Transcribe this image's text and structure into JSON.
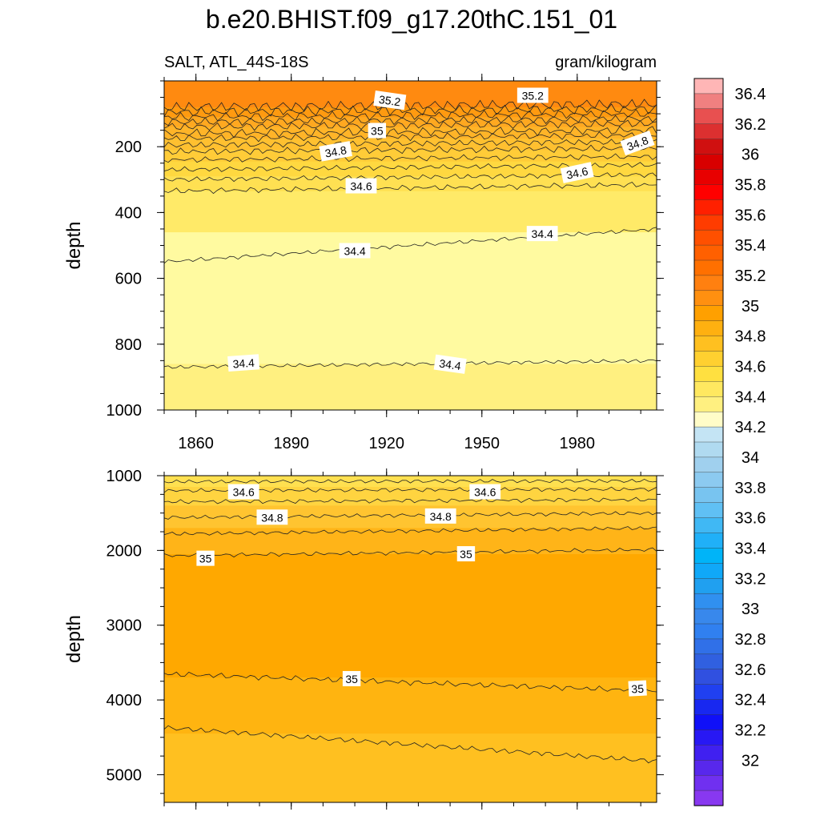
{
  "chart_data": {
    "type": "contour",
    "title": "b.e20.BHIST.f09_g17.20thC.151_01",
    "variable": "SALT, ATL_44S-18S",
    "units": "gram/kilogram",
    "ylabel": "depth",
    "xlim": [
      1850,
      2005
    ],
    "x_ticks": [
      1860,
      1890,
      1920,
      1950,
      1980
    ],
    "x_tick_labels": [
      "1860",
      "1890",
      "1920",
      "1950",
      "1980"
    ],
    "colors": {
      "upper_warm_band": "#ff8a10",
      "deep_band": "#ffa800"
    },
    "panels": [
      {
        "name": "upper",
        "ylim": [
          0,
          1000
        ],
        "y_ticks": [
          200,
          400,
          600,
          800,
          1000
        ],
        "y_tick_labels": [
          "200",
          "400",
          "600",
          "800",
          "1000"
        ],
        "fills": [
          {
            "top": 0,
            "color": "#ff8a10"
          },
          {
            "top": 80,
            "color": "#ff9a10"
          },
          {
            "top": 110,
            "color": "#ffa820"
          },
          {
            "top": 140,
            "color": "#ffb428"
          },
          {
            "top": 175,
            "color": "#ffc030"
          },
          {
            "top": 210,
            "color": "#ffcc38"
          },
          {
            "top": 245,
            "color": "#ffd840"
          },
          {
            "top": 290,
            "color": "#ffe052"
          },
          {
            "top": 335,
            "color": "#ffea68"
          },
          {
            "top": 460,
            "color": "#fffaa0"
          },
          {
            "top": 860,
            "color": "#fff080"
          }
        ],
        "contours": [
          {
            "start": 80,
            "end": 70,
            "amp": 8
          },
          {
            "start": 95,
            "end": 85,
            "amp": 7
          },
          {
            "start": 110,
            "end": 100,
            "amp": 6
          },
          {
            "start": 125,
            "end": 115,
            "amp": 6
          },
          {
            "start": 140,
            "end": 130,
            "amp": 6
          },
          {
            "start": 160,
            "end": 150,
            "amp": 6
          },
          {
            "start": 175,
            "end": 165,
            "amp": 5
          },
          {
            "start": 195,
            "end": 185,
            "amp": 5
          },
          {
            "start": 215,
            "end": 205,
            "amp": 5
          },
          {
            "start": 240,
            "end": 230,
            "amp": 4
          },
          {
            "start": 270,
            "end": 255,
            "amp": 4
          },
          {
            "start": 300,
            "end": 285,
            "amp": 4
          },
          {
            "start": 335,
            "end": 315,
            "amp": 4
          },
          {
            "start": 550,
            "end": 450,
            "amp": 3
          },
          {
            "start": 870,
            "end": 850,
            "amp": 3
          }
        ],
        "labels": [
          {
            "text": "35.2",
            "x": 1921,
            "y": 60,
            "angle": 8
          },
          {
            "text": "35.2",
            "x": 1966,
            "y": 45,
            "angle": 0
          },
          {
            "text": "35",
            "x": 1917,
            "y": 152,
            "angle": 0
          },
          {
            "text": "34.8",
            "x": 1904,
            "y": 215,
            "angle": -10
          },
          {
            "text": "34.8",
            "x": 1999,
            "y": 190,
            "angle": -20
          },
          {
            "text": "34.6",
            "x": 1912,
            "y": 320,
            "angle": 0
          },
          {
            "text": "34.6",
            "x": 1980,
            "y": 280,
            "angle": -12
          },
          {
            "text": "34.4",
            "x": 1910,
            "y": 517,
            "angle": 0
          },
          {
            "text": "34.4",
            "x": 1969,
            "y": 465,
            "angle": 0
          },
          {
            "text": "34.4",
            "x": 1875,
            "y": 858,
            "angle": -4
          },
          {
            "text": "34.4",
            "x": 1940,
            "y": 862,
            "angle": 8
          }
        ]
      },
      {
        "name": "lower",
        "ylim": [
          1000,
          5370
        ],
        "y_ticks": [
          1000,
          2000,
          3000,
          4000,
          5000
        ],
        "y_tick_labels": [
          "1000",
          "2000",
          "3000",
          "4000",
          "5000"
        ],
        "fills": [
          {
            "top": 1000,
            "color": "#ffe050"
          },
          {
            "top": 1150,
            "color": "#ffd440"
          },
          {
            "top": 1400,
            "color": "#ffc430"
          },
          {
            "top": 1700,
            "color": "#ffb418"
          },
          {
            "top": 2050,
            "color": "#ffa800"
          },
          {
            "top": 3700,
            "color": "#ffb410"
          },
          {
            "top": 4450,
            "color": "#ffc020"
          }
        ],
        "contours": [
          {
            "start": 1080,
            "end": 1070,
            "amp": 3
          },
          {
            "start": 1200,
            "end": 1180,
            "amp": 3
          },
          {
            "start": 1350,
            "end": 1320,
            "amp": 3
          },
          {
            "start": 1560,
            "end": 1500,
            "amp": 3
          },
          {
            "start": 1780,
            "end": 1700,
            "amp": 3
          },
          {
            "start": 2070,
            "end": 1990,
            "amp": 3
          },
          {
            "start": 3650,
            "end": 3880,
            "amp": 4
          },
          {
            "start": 4370,
            "end": 4820,
            "amp": 4
          }
        ],
        "labels": [
          {
            "text": "34.6",
            "x": 1875,
            "y": 1220,
            "angle": 0
          },
          {
            "text": "34.6",
            "x": 1951,
            "y": 1220,
            "angle": 0
          },
          {
            "text": "34.8",
            "x": 1884,
            "y": 1560,
            "angle": 0
          },
          {
            "text": "34.8",
            "x": 1937,
            "y": 1545,
            "angle": 0
          },
          {
            "text": "35",
            "x": 1863,
            "y": 2110,
            "angle": 0
          },
          {
            "text": "35",
            "x": 1945,
            "y": 2050,
            "angle": 0
          },
          {
            "text": "35",
            "x": 1909,
            "y": 3720,
            "angle": 0
          },
          {
            "text": "35",
            "x": 1999,
            "y": 3850,
            "angle": -3
          }
        ]
      }
    ],
    "colorbar": {
      "labels": [
        "36.4",
        "36.2",
        "36",
        "35.8",
        "35.6",
        "35.4",
        "35.2",
        "35",
        "34.8",
        "34.6",
        "34.4",
        "34.2",
        "34",
        "33.8",
        "33.6",
        "33.4",
        "33.2",
        "33",
        "32.8",
        "32.6",
        "32.4",
        "32.2",
        "32"
      ],
      "colors": [
        "#ffb6b6",
        "#f08080",
        "#e85050",
        "#dc3030",
        "#d01010",
        "#d80000",
        "#e80000",
        "#ff0000",
        "#ff2000",
        "#ff3c00",
        "#ff5000",
        "#ff6000",
        "#ff7000",
        "#ff8010",
        "#ff9010",
        "#ffa000",
        "#ffb010",
        "#ffc020",
        "#ffd030",
        "#ffe040",
        "#ffe860",
        "#fff080",
        "#fffcc8",
        "#c4e4f4",
        "#b0daf0",
        "#a0d0ee",
        "#8ccaf0",
        "#78c4f0",
        "#60c0f4",
        "#40b8f4",
        "#20b0f8",
        "#00b4f8",
        "#10a8f8",
        "#20a0f0",
        "#3090f0",
        "#3888ec",
        "#3080f0",
        "#3070e8",
        "#3060e0",
        "#3050e0",
        "#2040f0",
        "#1828f0",
        "#1010f8",
        "#2818f4",
        "#4020f0",
        "#5828ec",
        "#7030f0",
        "#8838f0"
      ]
    }
  }
}
